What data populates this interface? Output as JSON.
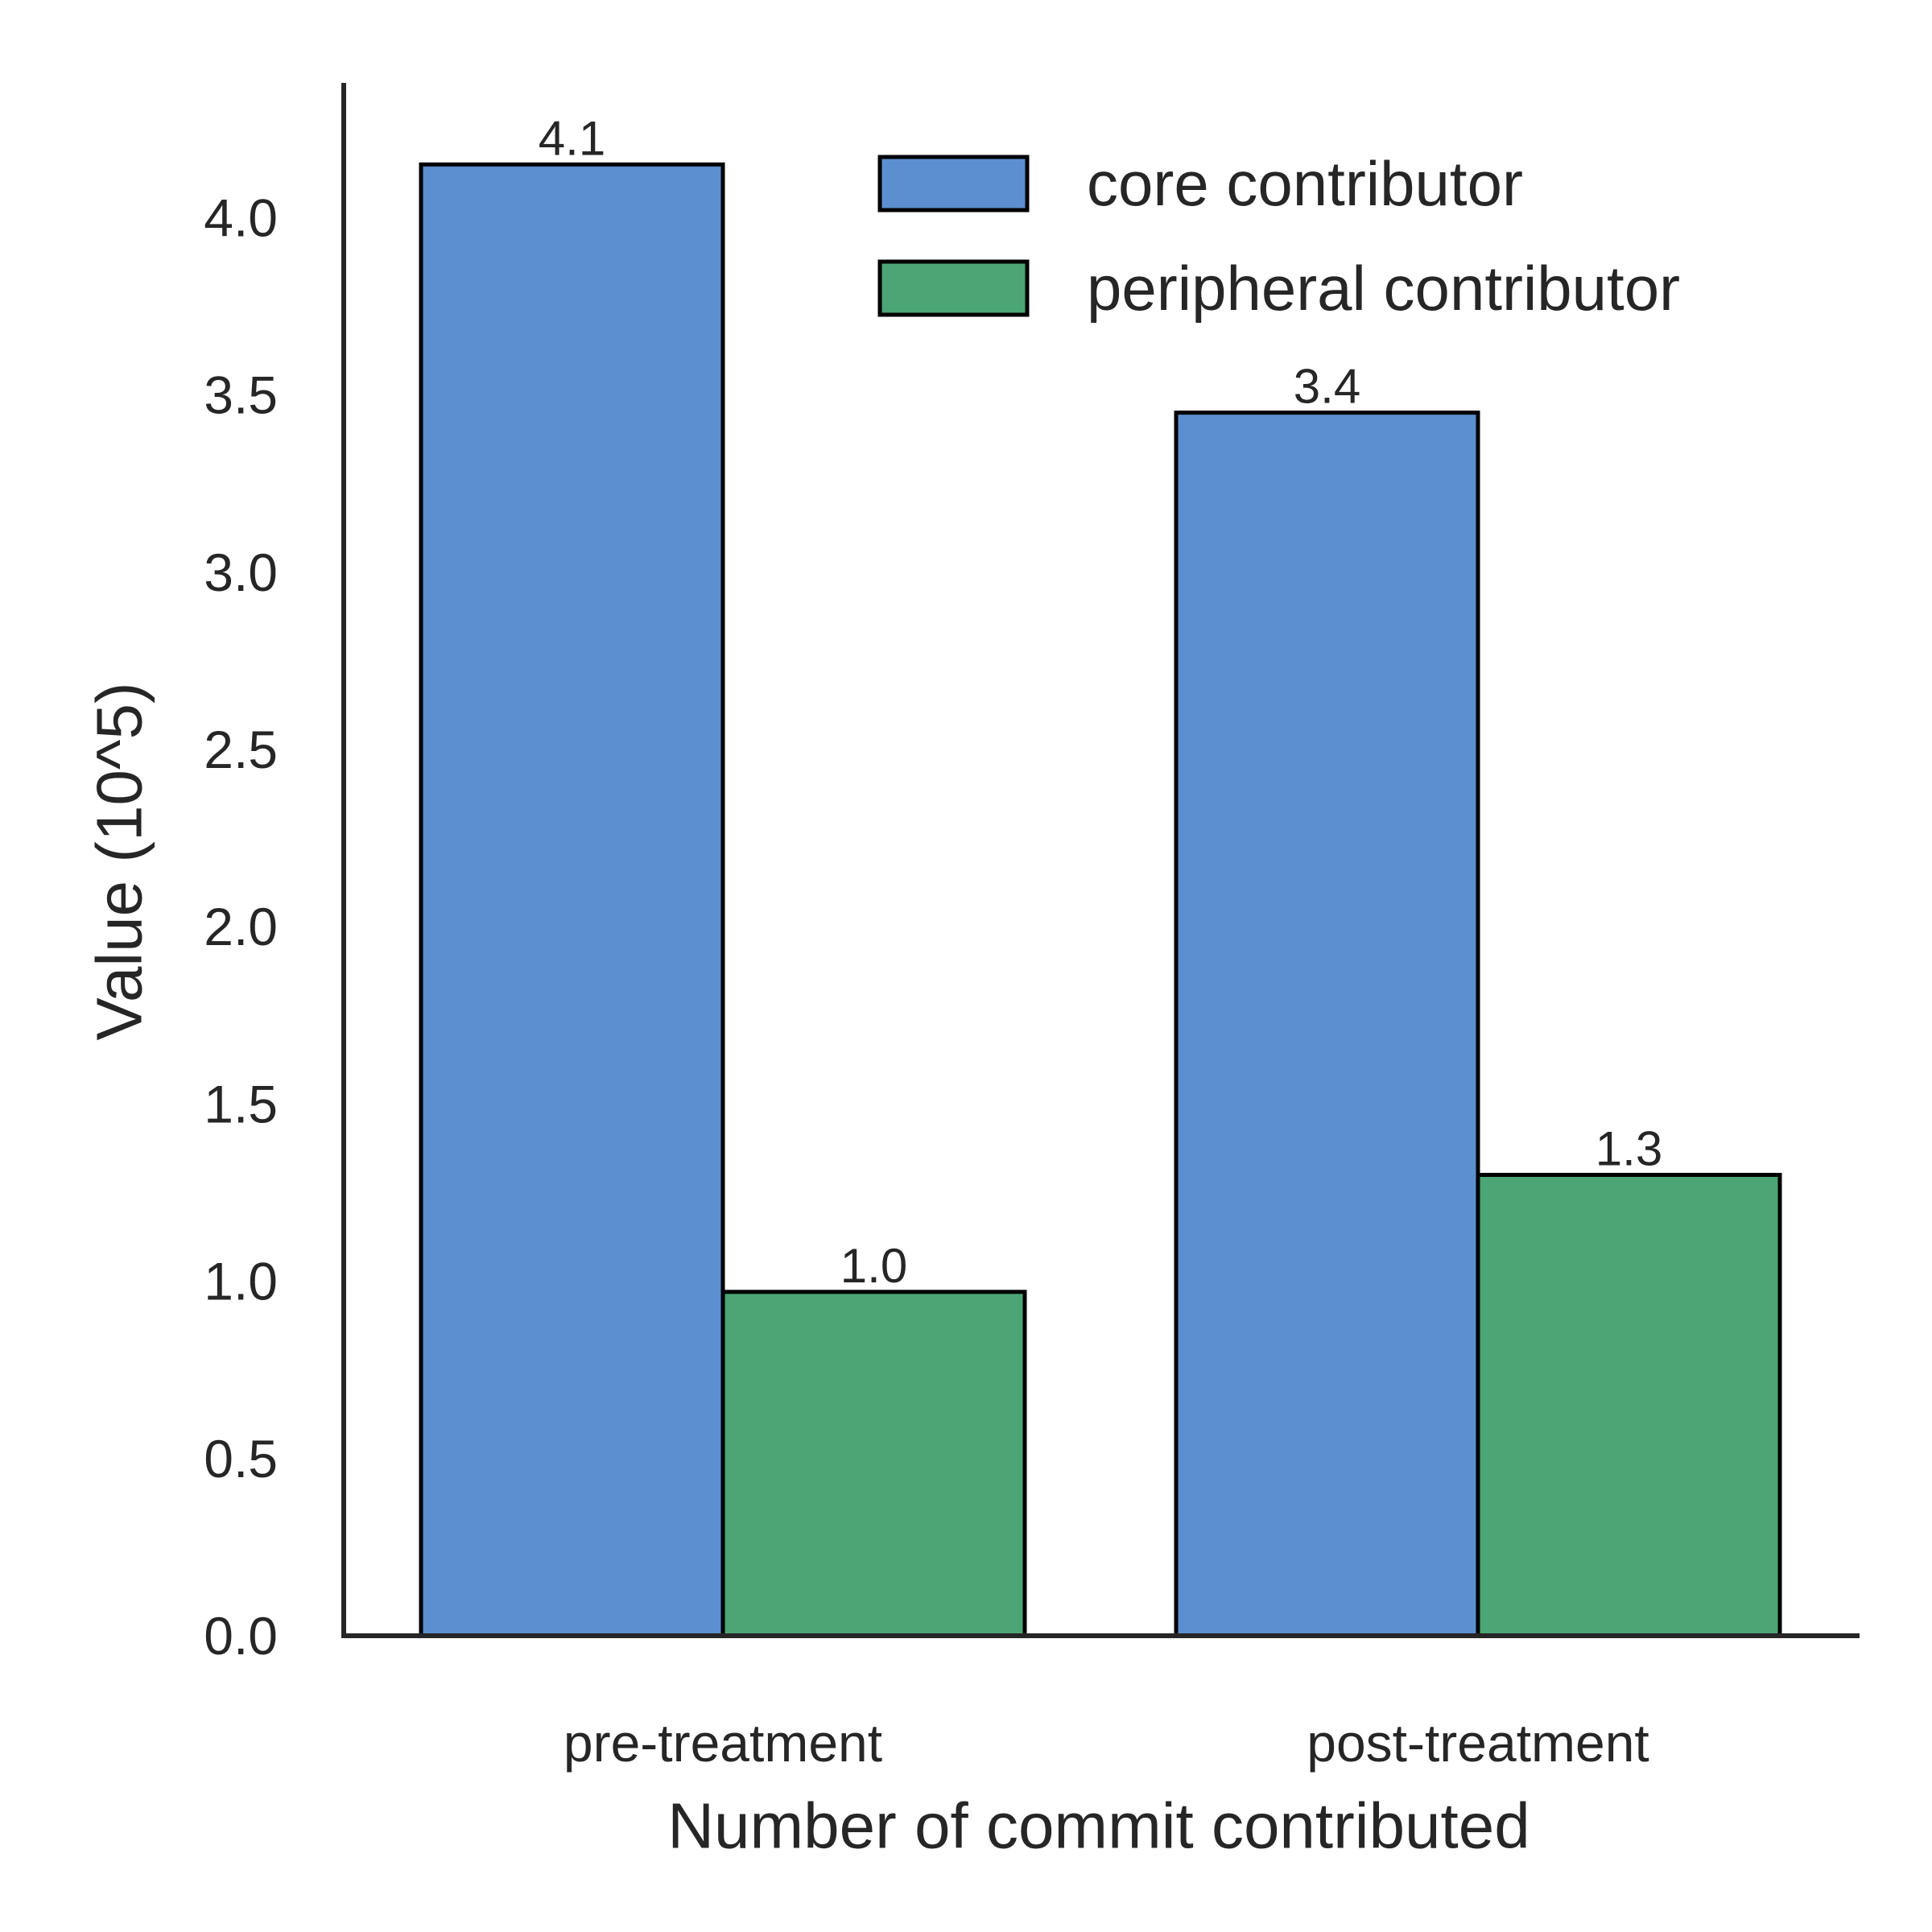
{
  "chart_data": {
    "type": "bar",
    "title": "",
    "xlabel": "Number of commit contributed",
    "ylabel": "Value (10^5)",
    "categories": [
      "pre-treatment",
      "post-treatment"
    ],
    "series": [
      {
        "name": "core contributor",
        "values": [
          4.15,
          3.45
        ],
        "labels": [
          "4.1",
          "3.4"
        ],
        "color": "#5b8fcf"
      },
      {
        "name": "peripheral contributor",
        "values": [
          0.97,
          1.3
        ],
        "labels": [
          "1.0",
          "1.3"
        ],
        "color": "#4ca574"
      }
    ],
    "ylim": [
      0,
      4.38
    ],
    "yticks": [
      "0.0",
      "0.5",
      "1.0",
      "1.5",
      "2.0",
      "2.5",
      "3.0",
      "3.5",
      "4.0"
    ],
    "grid": false,
    "legend_position": "top-right",
    "colors": {
      "axis": "#262626",
      "bar_edge": "#000000",
      "text": "#262626"
    }
  }
}
